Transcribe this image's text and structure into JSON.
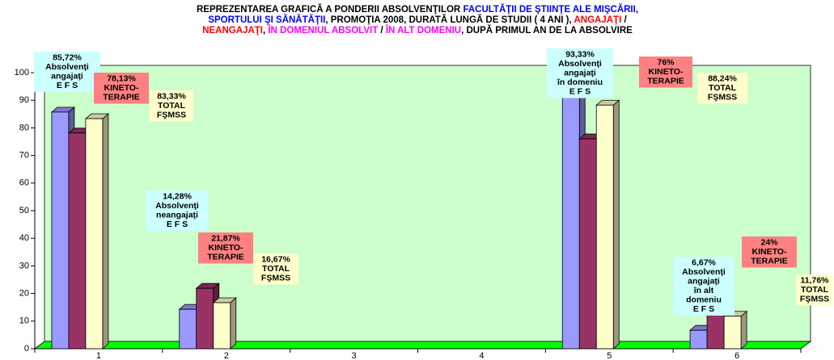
{
  "chart_data": {
    "type": "bar3d",
    "title_lines": [
      [
        {
          "text": "REPREZENTAREA GRAFICĂ A PONDERII ABSOLVENŢILOR ",
          "color": "#000000"
        },
        {
          "text": "FACULTĂŢII DE ŞTIINŢE ALE MIŞCĂRII,",
          "color": "#0000ff"
        }
      ],
      [
        {
          "text": "SPORTULUI ŞI SĂNĂTĂŢII",
          "color": "#0000ff"
        },
        {
          "text": ", PROMOŢIA 2008, DURATĂ LUNGĂ DE STUDII ( 4 ANI ), ",
          "color": "#000000"
        },
        {
          "text": "ANGAJAŢI",
          "color": "#ff0000"
        },
        {
          "text": " /",
          "color": "#000000"
        }
      ],
      [
        {
          "text": "NEANGAJAŢI",
          "color": "#ff0000"
        },
        {
          "text": ", ",
          "color": "#000000"
        },
        {
          "text": "ÎN DOMENIUL ABSOLVIT",
          "color": "#ff00ff"
        },
        {
          "text": " / ",
          "color": "#000000"
        },
        {
          "text": "ÎN ALT DOMENIU",
          "color": "#ff00ff"
        },
        {
          "text": ", DUPĂ PRIMUL AN DE LA ABSOLVIRE",
          "color": "#000000"
        }
      ]
    ],
    "categories": [
      "1",
      "2",
      "3",
      "4",
      "5",
      "6"
    ],
    "series": [
      {
        "color": "#9999ff",
        "label_color": "#ccffff",
        "values": [
          85.72,
          14.28,
          null,
          null,
          93.33,
          6.67
        ],
        "value_labels": [
          "85,72%",
          "14,28%",
          null,
          null,
          "93,33%",
          "6,67%"
        ],
        "labels": [
          [
            "Absolvenţi",
            "angajaţi",
            "E F S"
          ],
          [
            "Absolvenţi",
            "neangajaţi",
            "E F S"
          ],
          null,
          null,
          [
            "Absolvenţi",
            "angajaţi",
            "în domeniu",
            "E F S"
          ],
          [
            "Absolvenţi",
            "angajaţi",
            "în alt",
            "domeniu",
            "E F S"
          ]
        ]
      },
      {
        "color": "#993366",
        "label_color": "#ff8080",
        "values": [
          78.13,
          21.87,
          null,
          null,
          76,
          24
        ],
        "value_labels": [
          "78,13%",
          "21,87%",
          null,
          null,
          "76%",
          "24%"
        ],
        "labels": [
          [
            "KINETO-",
            "TERAPIE"
          ],
          [
            "KINETO-",
            "TERAPIE"
          ],
          null,
          null,
          [
            "KINETO-",
            "TERAPIE"
          ],
          [
            "KINETO-",
            "TERAPIE"
          ]
        ]
      },
      {
        "color": "#ffffcc",
        "label_color": "#ffffcc",
        "values": [
          83.33,
          16.67,
          null,
          null,
          88.24,
          11.76
        ],
        "value_labels": [
          "83,33%",
          "16,67%",
          null,
          null,
          "88,24%",
          "11,76%"
        ],
        "labels": [
          [
            "TOTAL",
            "FŞMSS"
          ],
          [
            "TOTAL",
            "FŞMSS"
          ],
          null,
          null,
          [
            "TOTAL",
            "FŞMSS"
          ],
          [
            "TOTAL",
            "FŞMSS"
          ]
        ]
      }
    ],
    "ylim": [
      0,
      100
    ],
    "yticks": [
      0,
      10,
      20,
      30,
      40,
      50,
      60,
      70,
      80,
      90,
      100
    ],
    "wall_color": "#ccffcc",
    "floor_color": "#00ff00"
  }
}
